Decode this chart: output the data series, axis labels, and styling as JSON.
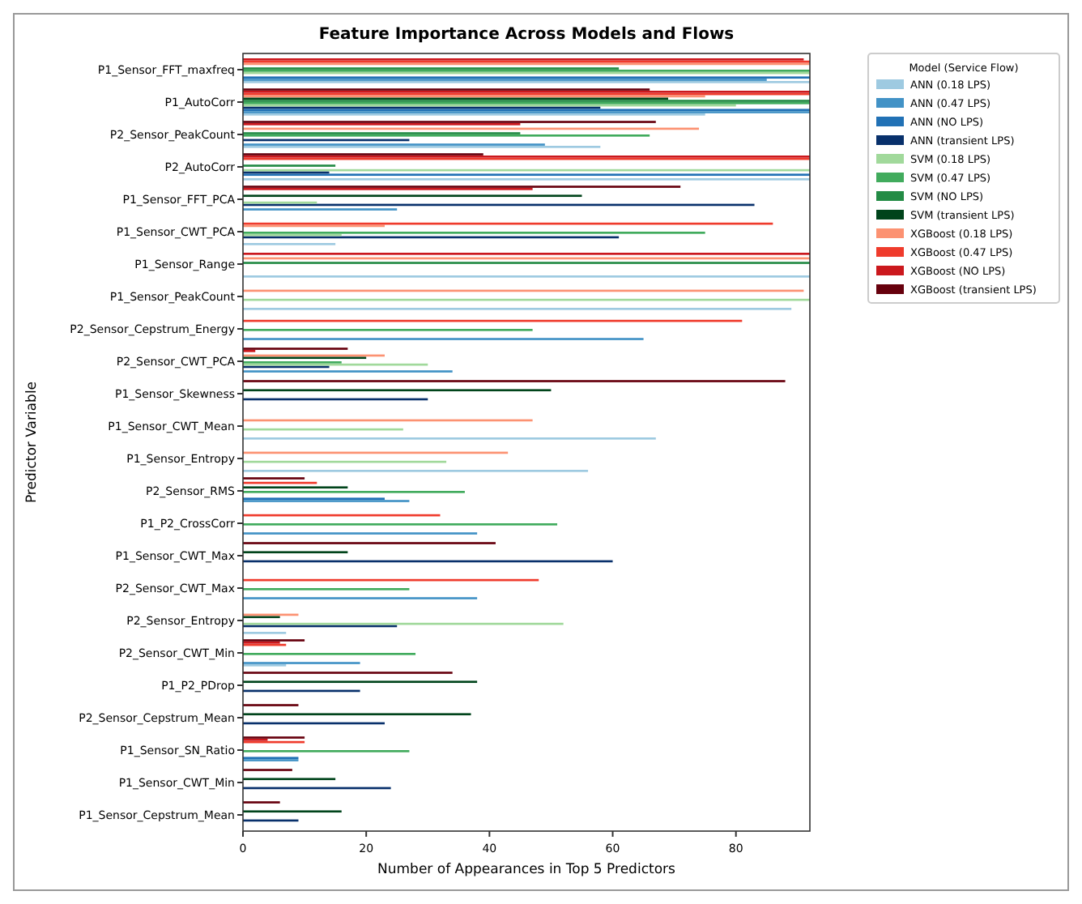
{
  "chart_data": {
    "type": "bar",
    "orientation": "horizontal",
    "title": "Feature Importance Across Models and Flows",
    "xlabel": "Number of Appearances in Top 5 Predictors",
    "ylabel": "Predictor Variable",
    "legend_title": "Model (Service Flow)",
    "legend": "top right",
    "grid": false,
    "xlim": [
      0,
      92
    ],
    "xticks": [
      0,
      20,
      40,
      60,
      80
    ],
    "categories": [
      "P1_Sensor_FFT_maxfreq",
      "P1_AutoCorr",
      "P2_Sensor_PeakCount",
      "P2_AutoCorr",
      "P1_Sensor_FFT_PCA",
      "P1_Sensor_CWT_PCA",
      "P1_Sensor_Range",
      "P1_Sensor_PeakCount",
      "P2_Sensor_Cepstrum_Energy",
      "P2_Sensor_CWT_PCA",
      "P1_Sensor_Skewness",
      "P1_Sensor_CWT_Mean",
      "P1_Sensor_Entropy",
      "P2_Sensor_RMS",
      "P1_P2_CrossCorr",
      "P1_Sensor_CWT_Max",
      "P2_Sensor_CWT_Max",
      "P2_Sensor_Entropy",
      "P2_Sensor_CWT_Min",
      "P1_P2_PDrop",
      "P2_Sensor_Cepstrum_Mean",
      "P1_Sensor_SN_Ratio",
      "P1_Sensor_CWT_Min",
      "P1_Sensor_Cepstrum_Mean"
    ],
    "series": [
      {
        "name": "ANN (0.18 LPS)",
        "color": "#9ecae1",
        "values": [
          92,
          75,
          58,
          92,
          0,
          15,
          92,
          89,
          0,
          0,
          0,
          67,
          56,
          0,
          0,
          0,
          0,
          7,
          7,
          0,
          0,
          0,
          0,
          0
        ]
      },
      {
        "name": "ANN (0.47 LPS)",
        "color": "#4292c6",
        "values": [
          85,
          92,
          49,
          0,
          25,
          0,
          0,
          0,
          65,
          34,
          0,
          0,
          0,
          27,
          38,
          0,
          38,
          0,
          19,
          0,
          0,
          9,
          0,
          0
        ]
      },
      {
        "name": "ANN (NO LPS)",
        "color": "#2171b5",
        "values": [
          92,
          92,
          0,
          92,
          0,
          0,
          0,
          0,
          0,
          0,
          0,
          0,
          0,
          23,
          0,
          0,
          0,
          0,
          0,
          0,
          0,
          9,
          0,
          0
        ]
      },
      {
        "name": "ANN (transient LPS)",
        "color": "#08306b",
        "values": [
          0,
          58,
          27,
          14,
          83,
          61,
          0,
          0,
          0,
          14,
          30,
          0,
          0,
          0,
          0,
          60,
          0,
          25,
          0,
          19,
          23,
          0,
          24,
          9
        ]
      },
      {
        "name": "SVM (0.18 LPS)",
        "color": "#a1d99b",
        "values": [
          92,
          80,
          0,
          92,
          12,
          16,
          0,
          92,
          0,
          30,
          0,
          26,
          33,
          0,
          0,
          0,
          0,
          52,
          0,
          0,
          0,
          0,
          0,
          0
        ]
      },
      {
        "name": "SVM (0.47 LPS)",
        "color": "#41ab5d",
        "values": [
          92,
          92,
          66,
          0,
          0,
          75,
          0,
          0,
          47,
          16,
          0,
          0,
          0,
          36,
          51,
          0,
          27,
          0,
          28,
          0,
          0,
          27,
          0,
          0
        ]
      },
      {
        "name": "SVM (NO LPS)",
        "color": "#238b45",
        "values": [
          61,
          92,
          45,
          15,
          0,
          0,
          92,
          0,
          0,
          0,
          0,
          0,
          0,
          0,
          0,
          0,
          0,
          0,
          0,
          0,
          0,
          0,
          0,
          0
        ]
      },
      {
        "name": "SVM (transient LPS)",
        "color": "#00441b",
        "values": [
          0,
          69,
          0,
          0,
          55,
          0,
          0,
          0,
          0,
          20,
          50,
          0,
          0,
          17,
          0,
          17,
          0,
          6,
          0,
          38,
          37,
          0,
          15,
          16
        ]
      },
      {
        "name": "XGBoost (0.18 LPS)",
        "color": "#fc9272",
        "values": [
          92,
          75,
          74,
          0,
          0,
          23,
          92,
          91,
          0,
          23,
          0,
          47,
          43,
          0,
          0,
          0,
          0,
          9,
          0,
          0,
          0,
          0,
          0,
          0
        ]
      },
      {
        "name": "XGBoost (0.47 LPS)",
        "color": "#ef3b2c",
        "values": [
          92,
          92,
          0,
          92,
          0,
          86,
          0,
          0,
          81,
          0,
          0,
          0,
          0,
          12,
          32,
          0,
          48,
          0,
          7,
          0,
          0,
          10,
          0,
          0
        ]
      },
      {
        "name": "XGBoost (NO LPS)",
        "color": "#cb181d",
        "values": [
          91,
          92,
          45,
          92,
          47,
          0,
          92,
          0,
          0,
          2,
          0,
          0,
          0,
          0,
          0,
          0,
          0,
          0,
          6,
          0,
          0,
          4,
          0,
          0
        ]
      },
      {
        "name": "XGBoost (transient LPS)",
        "color": "#67000d",
        "values": [
          0,
          66,
          67,
          39,
          71,
          0,
          0,
          0,
          0,
          17,
          88,
          0,
          0,
          10,
          0,
          41,
          0,
          0,
          10,
          34,
          9,
          10,
          8,
          6
        ]
      }
    ]
  }
}
